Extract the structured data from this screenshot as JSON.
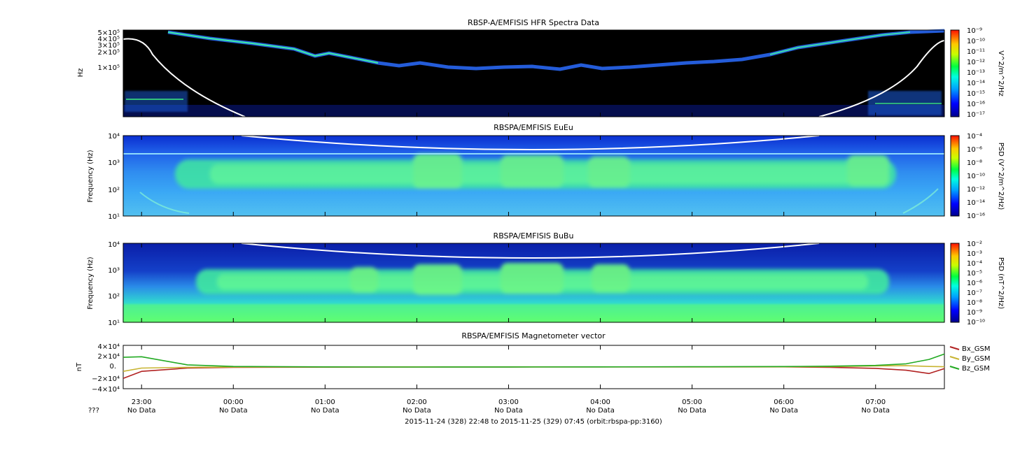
{
  "panels": [
    {
      "title": "RBSP-A/EMFISIS  HFR Spectra Data",
      "type": "heatmap",
      "ylabel": "Hz",
      "yticks": [
        "5×10⁵",
        "4×10⁵",
        "3×10⁵",
        "2×10⁵",
        "1×10⁵"
      ],
      "colorbar_label": "V^2/m^2/Hz",
      "colorbar_ticks": [
        "10⁻⁹",
        "10⁻¹⁰",
        "10⁻¹¹",
        "10⁻¹²",
        "10⁻¹³",
        "10⁻¹⁴",
        "10⁻¹⁵",
        "10⁻¹⁶",
        "10⁻¹⁷"
      ]
    },
    {
      "title": "RBSPA/EMFISIS  EuEu",
      "type": "heatmap",
      "ylabel": "Frequency (Hz)",
      "yticks": [
        "10⁴",
        "10³",
        "10²",
        "10¹"
      ],
      "colorbar_label": "PSD (V^2/m^2/Hz)",
      "colorbar_ticks": [
        "10⁻⁴",
        "10⁻⁶",
        "10⁻⁸",
        "10⁻¹⁰",
        "10⁻¹²",
        "10⁻¹⁴",
        "10⁻¹⁶"
      ]
    },
    {
      "title": "RBSPA/EMFISIS  BuBu",
      "type": "heatmap",
      "ylabel": "Frequency (Hz)",
      "yticks": [
        "10⁴",
        "10³",
        "10²",
        "10¹"
      ],
      "colorbar_label": "PSD (nT^2/Hz)",
      "colorbar_ticks": [
        "10⁻²",
        "10⁻³",
        "10⁻⁴",
        "10⁻⁵",
        "10⁻⁶",
        "10⁻⁷",
        "10⁻⁸",
        "10⁻⁹",
        "10⁻¹⁰"
      ]
    }
  ],
  "mag_panel": {
    "title": "RBSPA/EMFISIS  Magnetometer vector",
    "ylabel": "nT",
    "yticks": [
      "4×10⁴",
      "2×10⁴",
      "0.",
      "−2×10⁴",
      "−4×10⁴"
    ]
  },
  "chart_data": {
    "type": "line",
    "title": "RBSPA/EMFISIS  Magnetometer vector",
    "ylabel": "nT",
    "ylim": [
      -40000,
      40000
    ],
    "xlabel": "2015-11-24 (328) 22:48 to 2015-11-25 (329) 07:45 (orbit:rbspa-pp:3160)",
    "x_range": [
      "2015-11-24 22:48",
      "2015-11-25 07:45"
    ],
    "x": [
      "22:48",
      "23:00",
      "23:30",
      "00:00",
      "01:00",
      "02:00",
      "03:00",
      "04:00",
      "05:00",
      "06:00",
      "06:30",
      "07:00",
      "07:20",
      "07:35",
      "07:45"
    ],
    "series": [
      {
        "name": "Bx_GSM",
        "color": "#b22222",
        "values": [
          -21000,
          -8000,
          -2000,
          -500,
          -200,
          0,
          100,
          200,
          300,
          200,
          -500,
          -2500,
          -6000,
          -12000,
          -3000
        ]
      },
      {
        "name": "By_GSM",
        "color": "#c8b432",
        "values": [
          -8000,
          -2000,
          -500,
          0,
          100,
          200,
          200,
          200,
          300,
          400,
          800,
          2000,
          2500,
          1000,
          500
        ]
      },
      {
        "name": "Bz_GSM",
        "color": "#22aa22",
        "values": [
          18000,
          19000,
          4000,
          1000,
          300,
          0,
          100,
          200,
          500,
          900,
          1500,
          3000,
          6000,
          14000,
          24000
        ]
      }
    ]
  },
  "time_axis": {
    "labels": [
      "23:00",
      "00:00",
      "01:00",
      "02:00",
      "03:00",
      "04:00",
      "05:00",
      "06:00",
      "07:00"
    ],
    "row_label": "???",
    "sublabel": "No Data",
    "footer": "2015-11-24 (328) 22:48 to 2015-11-25 (329) 07:45 (orbit:rbspa-pp:3160)"
  }
}
